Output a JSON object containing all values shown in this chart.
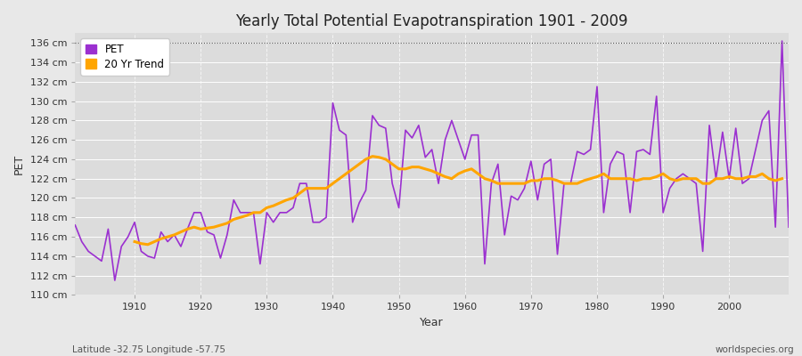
{
  "title": "Yearly Total Potential Evapotranspiration 1901 - 2009",
  "xlabel": "Year",
  "ylabel": "PET",
  "footnote_left": "Latitude -32.75 Longitude -57.75",
  "footnote_right": "worldspecies.org",
  "ylim": [
    110,
    137
  ],
  "yticks": [
    110,
    112,
    114,
    116,
    118,
    120,
    122,
    124,
    126,
    128,
    130,
    132,
    134,
    136
  ],
  "pet_color": "#9B30D0",
  "trend_color": "#FFA500",
  "bg_color": "#E8E8E8",
  "plot_bg_color": "#DCDCDC",
  "legend_labels": [
    "PET",
    "20 Yr Trend"
  ],
  "years": [
    1901,
    1902,
    1903,
    1904,
    1905,
    1906,
    1907,
    1908,
    1909,
    1910,
    1911,
    1912,
    1913,
    1914,
    1915,
    1916,
    1917,
    1918,
    1919,
    1920,
    1921,
    1922,
    1923,
    1924,
    1925,
    1926,
    1927,
    1928,
    1929,
    1930,
    1931,
    1932,
    1933,
    1934,
    1935,
    1936,
    1937,
    1938,
    1939,
    1940,
    1941,
    1942,
    1943,
    1944,
    1945,
    1946,
    1947,
    1948,
    1949,
    1950,
    1951,
    1952,
    1953,
    1954,
    1955,
    1956,
    1957,
    1958,
    1959,
    1960,
    1961,
    1962,
    1963,
    1964,
    1965,
    1966,
    1967,
    1968,
    1969,
    1970,
    1971,
    1972,
    1973,
    1974,
    1975,
    1976,
    1977,
    1978,
    1979,
    1980,
    1981,
    1982,
    1983,
    1984,
    1985,
    1986,
    1987,
    1988,
    1989,
    1990,
    1991,
    1992,
    1993,
    1994,
    1995,
    1996,
    1997,
    1998,
    1999,
    2000,
    2001,
    2002,
    2003,
    2004,
    2005,
    2006,
    2007,
    2008,
    2009
  ],
  "pet_values": [
    117.2,
    115.5,
    114.5,
    114.0,
    113.5,
    116.8,
    111.5,
    115.0,
    116.0,
    117.5,
    114.5,
    114.0,
    113.8,
    116.5,
    115.5,
    116.2,
    115.0,
    116.8,
    118.5,
    118.5,
    116.5,
    116.2,
    113.8,
    116.2,
    119.8,
    118.5,
    118.5,
    118.5,
    113.2,
    118.5,
    117.5,
    118.5,
    118.5,
    119.0,
    121.5,
    121.5,
    117.5,
    117.5,
    118.0,
    129.8,
    127.0,
    126.5,
    117.5,
    119.5,
    120.8,
    128.5,
    127.5,
    127.2,
    121.5,
    119.0,
    127.0,
    126.2,
    127.5,
    124.2,
    125.0,
    121.5,
    126.0,
    128.0,
    126.0,
    124.0,
    126.5,
    126.5,
    113.2,
    121.5,
    123.5,
    116.2,
    120.2,
    119.8,
    121.0,
    123.8,
    119.8,
    123.5,
    124.0,
    114.2,
    121.5,
    121.5,
    124.8,
    124.5,
    125.0,
    131.5,
    118.5,
    123.5,
    124.8,
    124.5,
    118.5,
    124.8,
    125.0,
    124.5,
    130.5,
    118.5,
    121.0,
    122.0,
    122.5,
    122.0,
    121.5,
    114.5,
    127.5,
    122.0,
    126.8,
    122.0,
    127.2,
    121.5,
    122.0,
    125.0,
    128.0,
    129.0,
    117.0,
    136.2,
    117.0
  ],
  "trend_values_years": [
    1910,
    1911,
    1912,
    1913,
    1914,
    1915,
    1916,
    1917,
    1918,
    1919,
    1920,
    1921,
    1922,
    1923,
    1924,
    1925,
    1926,
    1927,
    1928,
    1929,
    1930,
    1931,
    1932,
    1933,
    1934,
    1935,
    1936,
    1937,
    1938,
    1939,
    1940,
    1941,
    1942,
    1943,
    1944,
    1945,
    1946,
    1947,
    1948,
    1949,
    1950,
    1951,
    1952,
    1953,
    1954,
    1955,
    1956,
    1957,
    1958,
    1959,
    1960,
    1961,
    1962,
    1963,
    1964,
    1965,
    1966,
    1967,
    1968,
    1969,
    1970,
    1971,
    1972,
    1973,
    1974,
    1975,
    1976,
    1977,
    1978,
    1979,
    1980,
    1981,
    1982,
    1983,
    1984,
    1985,
    1986,
    1987,
    1988,
    1989,
    1990,
    1991,
    1992,
    1993,
    1994,
    1995,
    1996,
    1997,
    1998,
    1999,
    2000,
    2001,
    2002,
    2003,
    2004,
    2005,
    2006,
    2007,
    2008
  ],
  "trend_values": [
    115.5,
    115.3,
    115.2,
    115.5,
    115.8,
    116.0,
    116.2,
    116.5,
    116.8,
    117.0,
    116.8,
    116.9,
    117.0,
    117.2,
    117.4,
    117.8,
    118.0,
    118.2,
    118.5,
    118.5,
    119.0,
    119.2,
    119.5,
    119.8,
    120.0,
    120.5,
    121.0,
    121.0,
    121.0,
    121.0,
    121.5,
    122.0,
    122.5,
    123.0,
    123.5,
    124.0,
    124.3,
    124.2,
    124.0,
    123.5,
    123.0,
    123.0,
    123.2,
    123.2,
    123.0,
    122.8,
    122.5,
    122.2,
    122.0,
    122.5,
    122.8,
    123.0,
    122.5,
    122.0,
    121.8,
    121.5,
    121.5,
    121.5,
    121.5,
    121.5,
    121.8,
    121.8,
    122.0,
    122.0,
    121.8,
    121.5,
    121.5,
    121.5,
    121.8,
    122.0,
    122.2,
    122.5,
    122.0,
    122.0,
    122.0,
    122.0,
    121.8,
    122.0,
    122.0,
    122.2,
    122.5,
    122.0,
    121.8,
    122.0,
    122.0,
    122.0,
    121.5,
    121.5,
    122.0,
    122.0,
    122.2,
    122.0,
    122.0,
    122.2,
    122.2,
    122.5,
    122.0,
    121.8,
    122.0
  ]
}
